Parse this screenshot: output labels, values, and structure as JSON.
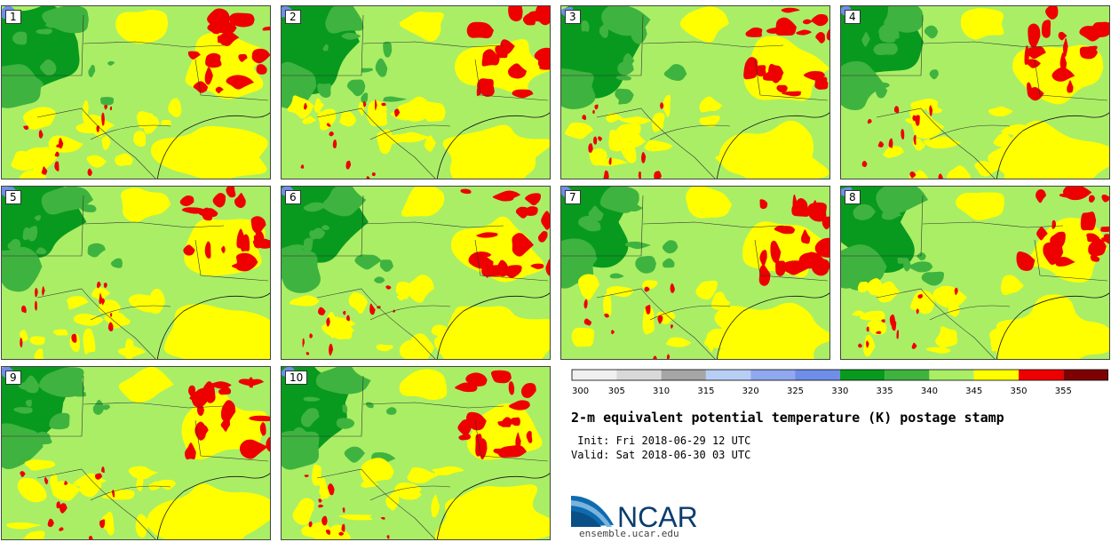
{
  "title": "2-m equivalent potential temperature (K) postage stamp",
  "init_time": " Init: Fri 2018-06-29 12 UTC",
  "valid_time": "Valid: Sat 2018-06-30 03 UTC",
  "logo_text": "NCAR",
  "logo_url": "ensemble.ucar.edu",
  "members": [
    "1",
    "2",
    "3",
    "4",
    "5",
    "6",
    "7",
    "8",
    "9",
    "10"
  ],
  "colorbar": {
    "ticks": [
      "300",
      "305",
      "310",
      "315",
      "320",
      "325",
      "330",
      "335",
      "340",
      "345",
      "350",
      "355"
    ],
    "colors": [
      "#f0f0f0",
      "#d9d9d9",
      "#a6a6a6",
      "#b8cff5",
      "#8fa8f0",
      "#6f8ee8",
      "#089a1e",
      "#3fb33f",
      "#aaee66",
      "#ffff00",
      "#ee0000",
      "#7f0000"
    ]
  },
  "colors": {
    "water": "#ffff00",
    "land": "#aaee66",
    "dark_green": "#089a1e",
    "mid_green": "#3fb33f",
    "hot": "#ee0000",
    "cold": "#6f8ee8"
  }
}
